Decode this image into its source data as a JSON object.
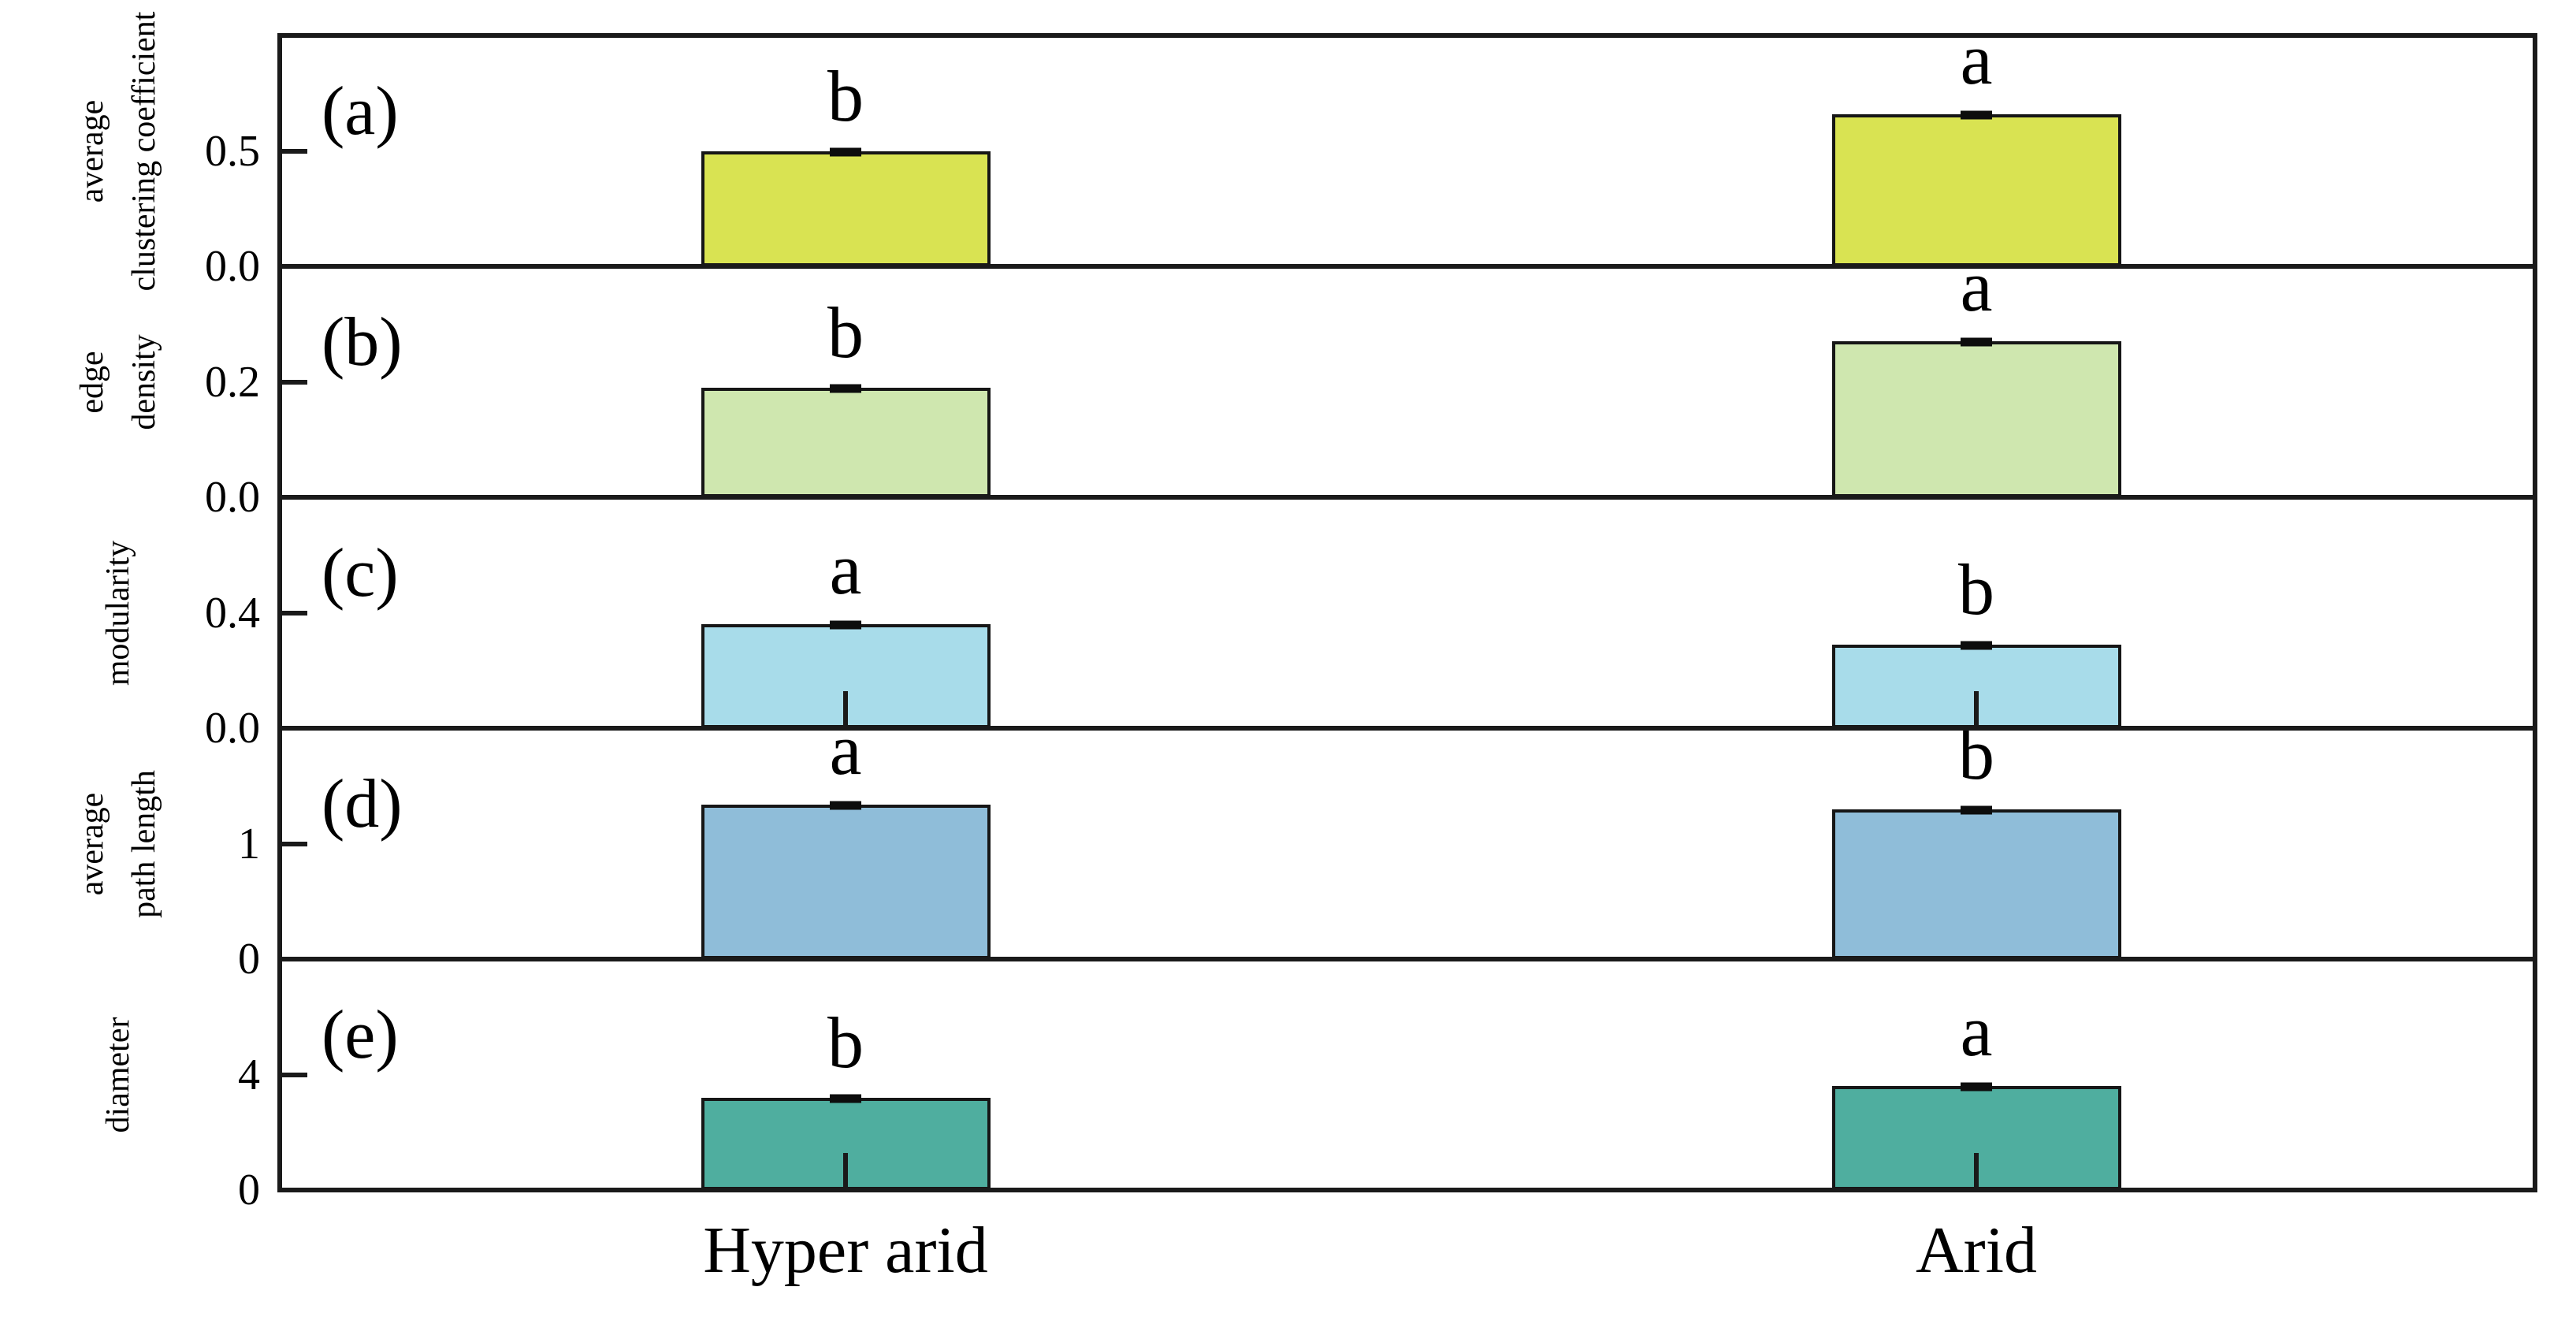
{
  "chart_data": {
    "type": "bar",
    "title": "",
    "xlabel": "",
    "legend": null,
    "grid": false,
    "categories": [
      "Hyper arid",
      "Arid"
    ],
    "bar_colors_by_panel": [
      "#d9e352",
      "#cfe7af",
      "#a8dcea",
      "#8fbdd9",
      "#4fae9f"
    ],
    "axis_color": "#1a1a1a",
    "panels": [
      {
        "tag": "(a)",
        "ylabel": "average clustering coefficient",
        "ylabel_lines": "average\nclustering coefficient",
        "values": [
          0.5,
          0.66
        ],
        "errors": [
          0.01,
          0.015
        ],
        "sig_letters": [
          "b",
          "a"
        ],
        "ylim": [
          0,
          1.0
        ],
        "ytick_values": [
          0,
          0.5
        ],
        "ytick_labels": [
          "0.0",
          "0.5"
        ],
        "bar_color": "#d9e352",
        "baseline_ticks": false
      },
      {
        "tag": "(b)",
        "ylabel": "edge density",
        "ylabel_lines": "edge\ndensity",
        "values": [
          0.19,
          0.27
        ],
        "errors": [
          0.006,
          0.01
        ],
        "sig_letters": [
          "b",
          "a"
        ],
        "ylim": [
          0,
          0.4
        ],
        "ytick_values": [
          0,
          0.2
        ],
        "ytick_labels": [
          "0.0",
          "0.2"
        ],
        "bar_color": "#cfe7af",
        "baseline_ticks": false
      },
      {
        "tag": "(c)",
        "ylabel": "modularity",
        "ylabel_lines": "modularity",
        "values": [
          0.36,
          0.29
        ],
        "errors": [
          0.01,
          0.012
        ],
        "sig_letters": [
          "a",
          "b"
        ],
        "ylim": [
          0,
          0.8
        ],
        "ytick_values": [
          0,
          0.4
        ],
        "ytick_labels": [
          "0.0",
          "0.4"
        ],
        "bar_color": "#a8dcea",
        "baseline_ticks": true
      },
      {
        "tag": "(d)",
        "ylabel": "average path length",
        "ylabel_lines": "average\npath length",
        "values": [
          1.34,
          1.3
        ],
        "errors": [
          0.02,
          0.02
        ],
        "sig_letters": [
          "a",
          "b"
        ],
        "ylim": [
          0,
          2
        ],
        "ytick_values": [
          0,
          1
        ],
        "ytick_labels": [
          "0",
          "1"
        ],
        "bar_color": "#8fbdd9",
        "baseline_ticks": false
      },
      {
        "tag": "(e)",
        "ylabel": "diameter",
        "ylabel_lines": "diameter",
        "values": [
          3.2,
          3.6
        ],
        "errors": [
          0.05,
          0.06
        ],
        "sig_letters": [
          "b",
          "a"
        ],
        "ylim": [
          0,
          8
        ],
        "ytick_values": [
          0,
          4
        ],
        "ytick_labels": [
          "0",
          "4"
        ],
        "bar_color": "#4fae9f",
        "baseline_ticks": true
      }
    ]
  }
}
